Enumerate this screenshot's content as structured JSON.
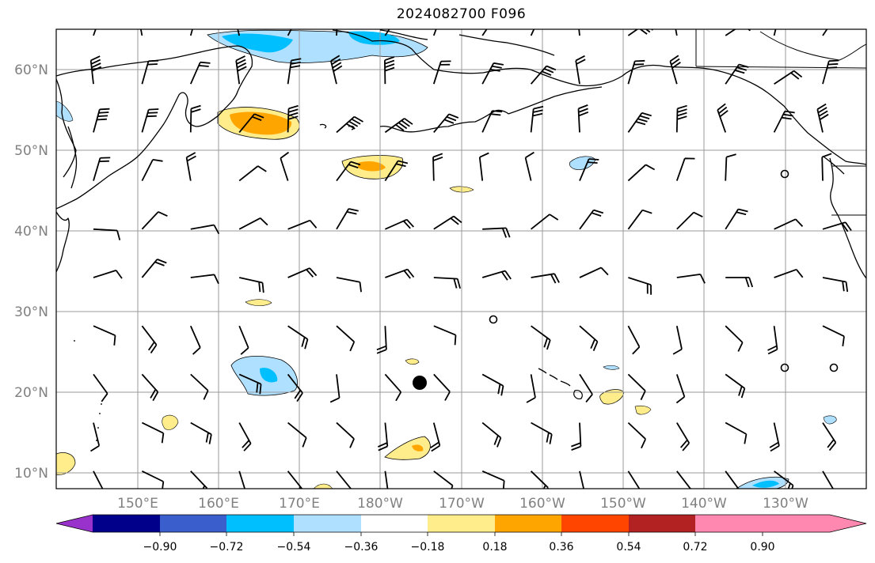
{
  "title": "2024082700 F096",
  "latitude_labels": [
    "10°N",
    "20°N",
    "30°N",
    "40°N",
    "50°N",
    "60°N"
  ],
  "longitude_labels": [
    "150°E",
    "160°E",
    "170°E",
    "180°W",
    "170°W",
    "160°W",
    "150°W",
    "140°W",
    "130°W"
  ],
  "colorbar": {
    "colors": [
      "#9932cc",
      "#00008b",
      "#3a5fcd",
      "#00bfff",
      "#b0e0ff",
      "#ffffff",
      "#ffec8b",
      "#ffa500",
      "#ff4500",
      "#b22222",
      "#ff88b0"
    ],
    "labels": [
      "−0.90",
      "−0.72",
      "−0.54",
      "−0.36",
      "−0.18",
      "0.18",
      "0.36",
      "0.54",
      "0.72",
      "0.90"
    ]
  },
  "marker": "storm-center-dot",
  "icons": [
    "wind-barb-icon",
    "calm-circle-icon",
    "storm-center-icon"
  ]
}
